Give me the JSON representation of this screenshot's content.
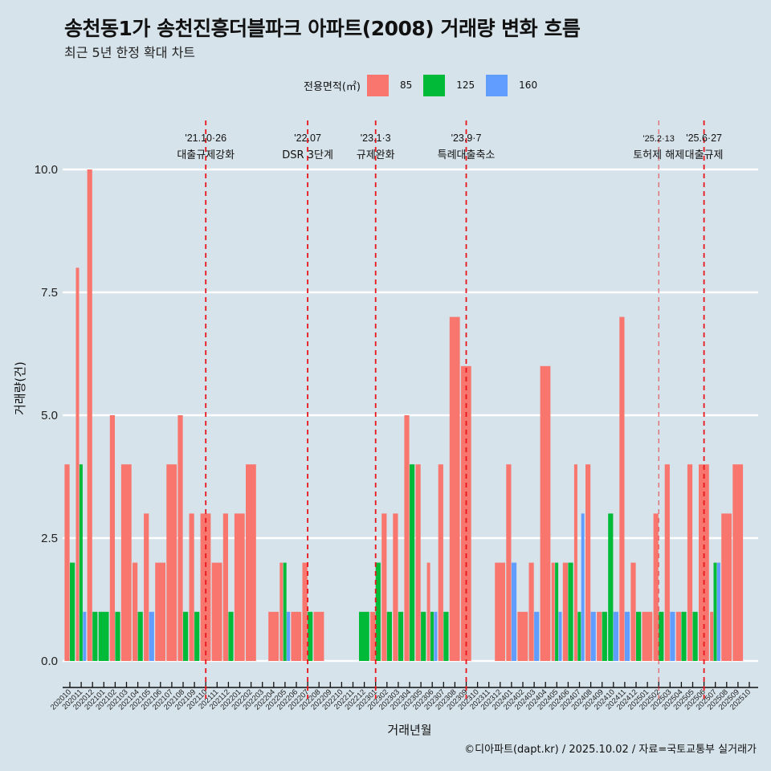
{
  "title": "송천동1가 송천진흥더블파크 아파트(2008) 거래량 변화 흐름",
  "subtitle": "최근 5년 한정 확대 차트",
  "legend": {
    "title": "전용면적(㎡)",
    "items": [
      {
        "label": "85",
        "color": "#F8766D"
      },
      {
        "label": "125",
        "color": "#00BA38"
      },
      {
        "label": "160",
        "color": "#619CFF"
      }
    ]
  },
  "footer": "©디아파트(dapt.kr) / 2025.10.02 / 자료=국토교통부 실거래가",
  "colors": {
    "background": "#D6E3EA",
    "grid": "#FFFFFF",
    "vline": "#E8151B"
  },
  "chart_data": {
    "type": "bar",
    "title": "송천동1가 송천진흥더블파크 아파트(2008) 거래량 변화 흐름",
    "xlabel": "거래년월",
    "ylabel": "거래량(건)",
    "ylim": [
      0,
      10
    ],
    "yticks": [
      "0.0",
      "2.5",
      "5.0",
      "7.5",
      "10.0"
    ],
    "ytick_values": [
      0,
      2.5,
      5,
      7.5,
      10
    ],
    "grid": true,
    "legend_position": "top",
    "categories": [
      "202010",
      "202011",
      "202012",
      "202101",
      "202102",
      "202103",
      "202104",
      "202105",
      "202106",
      "202107",
      "202108",
      "202109",
      "202110",
      "202111",
      "202112",
      "202201",
      "202202",
      "202203",
      "202204",
      "202205",
      "202206",
      "202207",
      "202208",
      "202209",
      "202210",
      "202211",
      "202212",
      "202301",
      "202302",
      "202303",
      "202304",
      "202305",
      "202306",
      "202307",
      "202308",
      "202309",
      "202310",
      "202311",
      "202312",
      "202401",
      "202402",
      "202403",
      "202404",
      "202405",
      "202406",
      "202407",
      "202408",
      "202409",
      "202410",
      "202411",
      "202412",
      "202501",
      "202502",
      "202503",
      "202504",
      "202505",
      "202506",
      "202507",
      "202508",
      "202509",
      "202510"
    ],
    "series": [
      {
        "name": "85",
        "color": "#F8766D",
        "values": [
          4,
          8,
          10,
          0,
          5,
          4,
          2,
          3,
          2,
          4,
          5,
          3,
          3,
          2,
          3,
          3,
          4,
          0,
          1,
          2,
          1,
          2,
          1,
          0,
          0,
          0,
          0,
          1,
          3,
          3,
          5,
          4,
          2,
          4,
          7,
          6,
          0,
          0,
          2,
          4,
          1,
          2,
          6,
          2,
          2,
          4,
          4,
          1,
          0,
          7,
          2,
          1,
          3,
          4,
          1,
          4,
          4,
          1,
          3,
          4,
          0
        ]
      },
      {
        "name": "125",
        "color": "#00BA38",
        "values": [
          2,
          4,
          1,
          1,
          1,
          0,
          1,
          0,
          0,
          0,
          1,
          1,
          0,
          0,
          1,
          0,
          0,
          0,
          0,
          2,
          0,
          1,
          0,
          0,
          0,
          0,
          1,
          2,
          1,
          1,
          4,
          1,
          1,
          1,
          0,
          0,
          0,
          0,
          0,
          0,
          0,
          0,
          0,
          2,
          2,
          1,
          0,
          1,
          3,
          0,
          1,
          0,
          1,
          0,
          1,
          1,
          0,
          2,
          0,
          0,
          0
        ]
      },
      {
        "name": "160",
        "color": "#619CFF",
        "values": [
          0,
          1,
          0,
          0,
          0,
          0,
          0,
          1,
          0,
          0,
          0,
          0,
          0,
          0,
          0,
          0,
          0,
          0,
          0,
          1,
          0,
          0,
          0,
          0,
          0,
          0,
          0,
          0,
          0,
          0,
          0,
          0,
          1,
          0,
          0,
          0,
          0,
          0,
          0,
          2,
          0,
          1,
          0,
          1,
          0,
          3,
          1,
          0,
          1,
          1,
          0,
          0,
          0,
          1,
          0,
          0,
          0,
          2,
          0,
          0,
          0
        ]
      }
    ],
    "annotations": [
      {
        "date": "'21.10·26",
        "text": "대출규제강화",
        "month": "202110",
        "style": "dashed"
      },
      {
        "date": "'22.07",
        "text": "DSR 3단계",
        "month": "202207",
        "style": "dashed"
      },
      {
        "date": "'23.1·3",
        "text": "규제완화",
        "month": "202301",
        "style": "dashed"
      },
      {
        "date": "'23.9·7",
        "text": "특례대출축소",
        "month": "202309",
        "style": "dashed"
      },
      {
        "date": "'25.2·13",
        "text": "토허제 해제",
        "month": "202502",
        "style": "thin-dashed"
      },
      {
        "date": "'25.6·27",
        "text": "대출규제",
        "month": "202506",
        "style": "dashed"
      }
    ]
  }
}
